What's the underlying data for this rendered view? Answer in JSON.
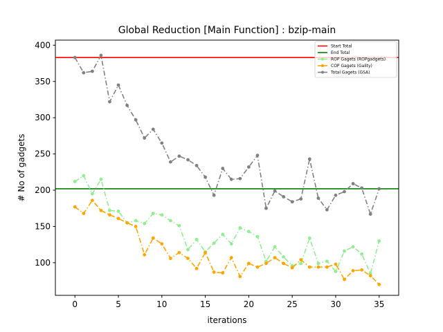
{
  "chart_data": {
    "type": "line",
    "title": "Global Reduction [Main Function] : bzip-main",
    "xlabel": "iterations",
    "ylabel": "# No of gadgets",
    "xlim": [
      -2.25,
      37.25
    ],
    "ylim": [
      55,
      407
    ],
    "xticks": [
      0,
      5,
      10,
      15,
      20,
      25,
      30,
      35
    ],
    "yticks": [
      100,
      150,
      200,
      250,
      300,
      350,
      400
    ],
    "legend_position": "top-right",
    "grid": false,
    "hlines": [
      {
        "name": "Start Total",
        "value": 383,
        "color": "#ff0000"
      },
      {
        "name": "End Total",
        "value": 202,
        "color": "#008000"
      }
    ],
    "x": [
      0,
      1,
      2,
      3,
      4,
      5,
      6,
      7,
      8,
      9,
      10,
      11,
      12,
      13,
      14,
      15,
      16,
      17,
      18,
      19,
      20,
      21,
      22,
      23,
      24,
      25,
      26,
      27,
      28,
      29,
      30,
      31,
      32,
      33,
      34,
      35
    ],
    "series": [
      {
        "name": "ROP Gagets (ROPgadgets)",
        "color": "#90ee90",
        "values": [
          212,
          220,
          195,
          215,
          172,
          171,
          155,
          158,
          154,
          168,
          166,
          158,
          151,
          118,
          132,
          115,
          127,
          139,
          126,
          148,
          143,
          136,
          102,
          122,
          108,
          96,
          99,
          134,
          99,
          102,
          88,
          116,
          122,
          112,
          85,
          130
        ]
      },
      {
        "name": "COP Gagets (Gality)",
        "color": "#ffa500",
        "values": [
          177,
          168,
          186,
          172,
          166,
          161,
          155,
          150,
          111,
          134,
          126,
          106,
          114,
          106,
          92,
          114,
          87,
          86,
          107,
          81,
          99,
          94,
          99,
          107,
          99,
          93,
          104,
          94,
          94,
          94,
          98,
          77,
          89,
          90,
          82,
          70
        ]
      },
      {
        "name": "Total Gagets (GSA)",
        "color": "#808080",
        "values": [
          383,
          362,
          364,
          386,
          322,
          345,
          317,
          297,
          272,
          284,
          265,
          239,
          247,
          242,
          234,
          218,
          193,
          230,
          215,
          216,
          232,
          248,
          175,
          199,
          191,
          184,
          188,
          243,
          189,
          173,
          193,
          198,
          209,
          203,
          167,
          202
        ]
      }
    ]
  }
}
